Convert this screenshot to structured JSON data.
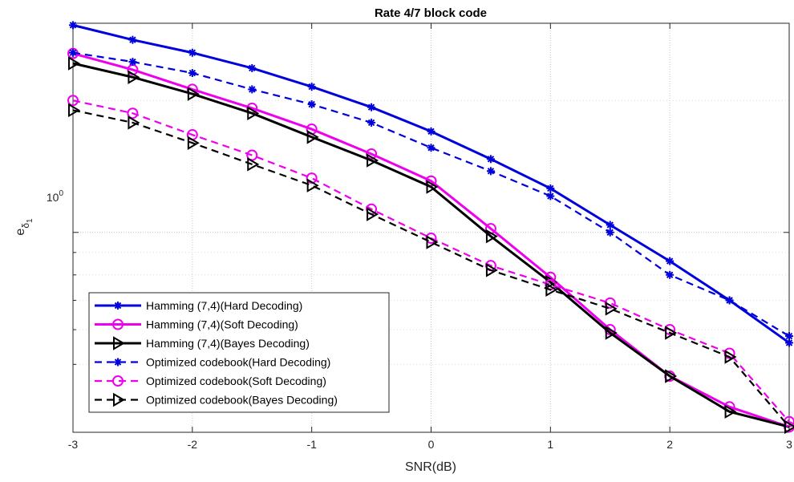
{
  "chart_data": {
    "type": "line",
    "title": "Rate 4/7 block code",
    "xlabel": "SNR(dB)",
    "ylabel_base": "e",
    "ylabel_sub": "δ",
    "ylabel_subsub": "1",
    "y_scale": "log",
    "xlim": [
      -3,
      3
    ],
    "ylim": [
      0.35,
      3.0
    ],
    "xticks": [
      -3,
      -2,
      -1,
      0,
      1,
      2,
      3
    ],
    "xtick_labels": [
      "-3",
      "-2",
      "-1",
      "0",
      "1",
      "2",
      "3"
    ],
    "ytick_label_base": "10",
    "ytick_label_exp": "0",
    "ytick_value": 1,
    "y_minor_gridlines": [
      0.5,
      0.6,
      0.7,
      0.8,
      0.9,
      2,
      3
    ],
    "grid": true,
    "legend_position": "bottom-left",
    "x": [
      -3,
      -2.5,
      -2,
      -1.5,
      -1,
      -0.5,
      0,
      0.5,
      1,
      1.5,
      2,
      2.5,
      3
    ],
    "series": [
      {
        "name": "Hamming (7,4)(Hard Decoding)",
        "color": "#0000dd",
        "dash": "solid",
        "marker": "asterisk",
        "values": [
          2.97,
          2.75,
          2.57,
          2.37,
          2.15,
          1.93,
          1.7,
          1.47,
          1.26,
          1.04,
          0.86,
          0.7,
          0.56
        ]
      },
      {
        "name": "Hamming (7,4)(Soft Decoding)",
        "color": "#ee00ee",
        "dash": "solid",
        "marker": "circle",
        "values": [
          2.56,
          2.35,
          2.12,
          1.92,
          1.72,
          1.51,
          1.31,
          1.02,
          0.79,
          0.6,
          0.47,
          0.4,
          0.36
        ]
      },
      {
        "name": "Hamming (7,4)(Bayes Decoding)",
        "color": "#000000",
        "dash": "solid",
        "marker": "triangle-right",
        "values": [
          2.43,
          2.26,
          2.07,
          1.87,
          1.65,
          1.46,
          1.27,
          0.98,
          0.77,
          0.59,
          0.47,
          0.39,
          0.36
        ]
      },
      {
        "name": "Optimized codebook(Hard Decoding)",
        "color": "#0000dd",
        "dash": "dashed",
        "marker": "asterisk",
        "values": [
          2.57,
          2.45,
          2.31,
          2.12,
          1.96,
          1.78,
          1.56,
          1.38,
          1.21,
          1.0,
          0.8,
          0.7,
          0.58
        ]
      },
      {
        "name": "Optimized codebook(Soft Decoding)",
        "color": "#ee00ee",
        "dash": "dashed",
        "marker": "circle",
        "values": [
          2.0,
          1.87,
          1.67,
          1.5,
          1.33,
          1.13,
          0.97,
          0.84,
          0.76,
          0.69,
          0.6,
          0.53,
          0.37
        ]
      },
      {
        "name": "Optimized codebook(Bayes Decoding)",
        "color": "#000000",
        "dash": "dashed",
        "marker": "triangle-right",
        "values": [
          1.9,
          1.78,
          1.6,
          1.43,
          1.28,
          1.1,
          0.95,
          0.82,
          0.74,
          0.67,
          0.59,
          0.52,
          0.36
        ]
      }
    ]
  }
}
